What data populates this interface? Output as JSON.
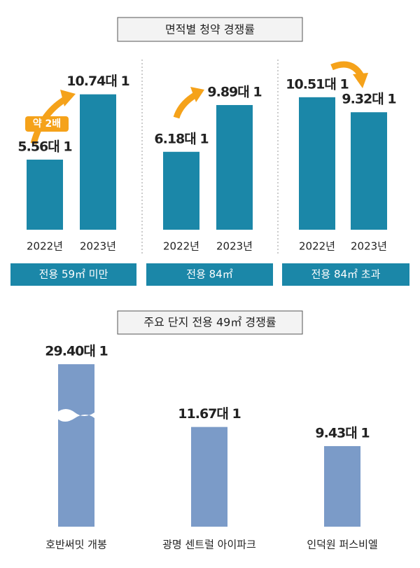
{
  "chart_data": [
    {
      "type": "bar",
      "title": "면적별 청약 경쟁률",
      "annotation": "약 2배",
      "label": "전용 59㎡ 미만",
      "color": "#1b87a8",
      "categories": [
        "2022년",
        "2023년"
      ],
      "values": [
        5.56,
        10.74
      ],
      "value_labels": [
        "5.56대 1",
        "10.74대 1"
      ]
    },
    {
      "type": "bar",
      "label": "전용 84㎡",
      "color": "#1b87a8",
      "categories": [
        "2022년",
        "2023년"
      ],
      "values": [
        6.18,
        9.89
      ],
      "value_labels": [
        "6.18대 1",
        "9.89대 1"
      ]
    },
    {
      "type": "bar",
      "label": "전용 84㎡ 초과",
      "color": "#1b87a8",
      "categories": [
        "2022년",
        "2023년"
      ],
      "values": [
        10.51,
        9.32
      ],
      "value_labels": [
        "10.51대 1",
        "9.32대 1"
      ]
    },
    {
      "type": "bar",
      "title": "주요 단지 전용 49㎡ 경쟁률",
      "color": "#7b9bc8",
      "categories": [
        "호반써밋 개봉",
        "광명 센트럴 아이파크",
        "인덕원 퍼스비엘"
      ],
      "values": [
        29.4,
        11.67,
        9.43
      ],
      "value_labels": [
        "29.40대 1",
        "11.67대 1",
        "9.43대 1"
      ]
    }
  ]
}
